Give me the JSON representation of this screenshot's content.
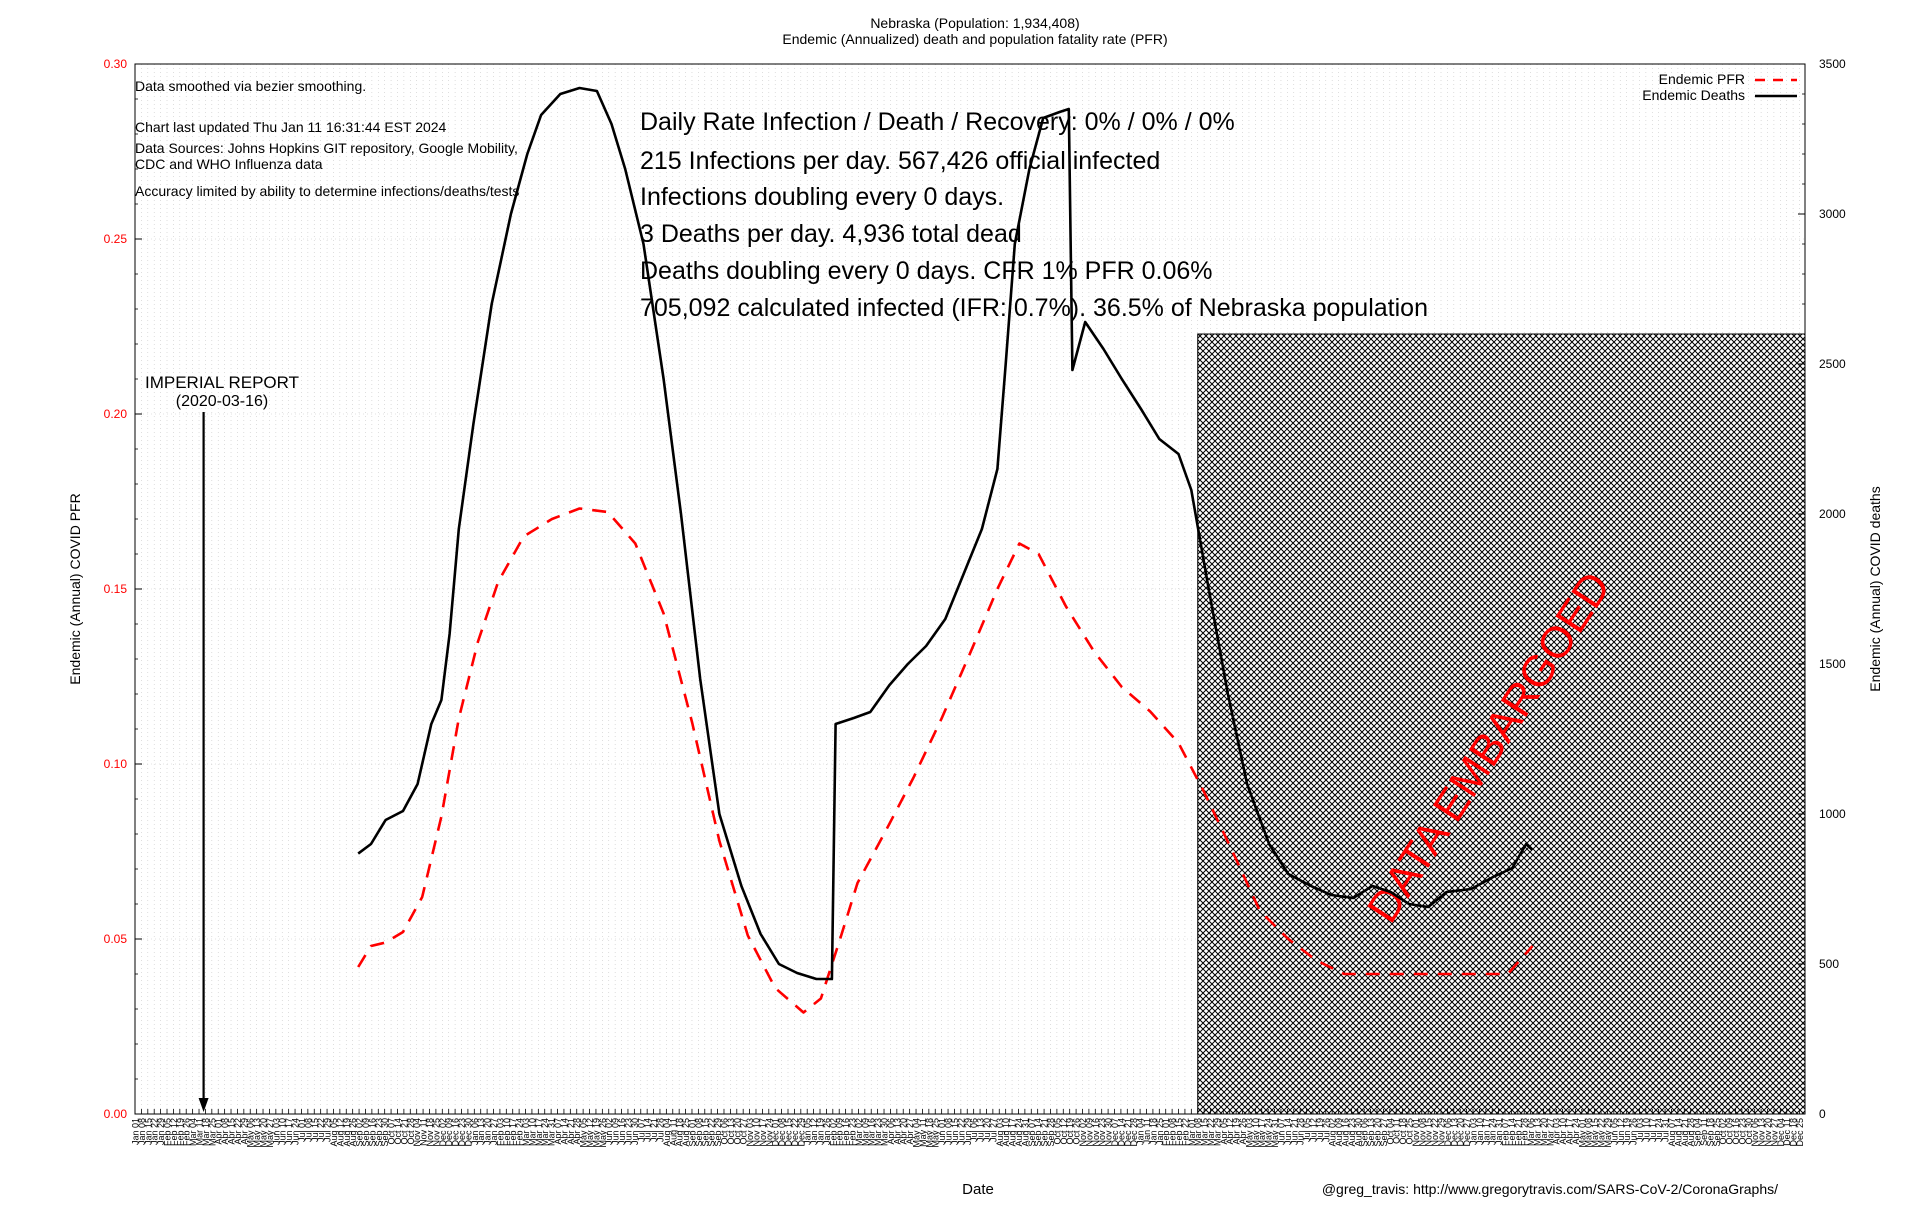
{
  "chart_data": {
    "type": "line",
    "title": "Nebraska (Population: 1,934,408)",
    "subtitle": "Endemic (Annualized) death and population fatality rate (PFR)",
    "xlabel": "Date",
    "ylabel": "Endemic (Annual) COVID PFR",
    "y2label": "Endemic (Annual) COVID deaths",
    "ylim": [
      0,
      0.3
    ],
    "y2lim": [
      0,
      3500
    ],
    "yticks": [
      "0.00",
      "0.05",
      "0.10",
      "0.15",
      "0.20",
      "0.25",
      "0.30"
    ],
    "y2ticks": [
      "0",
      "500",
      "1000",
      "1500",
      "2000",
      "2500",
      "3000",
      "3500"
    ],
    "grid": true,
    "legend_position": "top-right",
    "x_start": "2020-01-01",
    "x_end": "2024-12-31",
    "embargo_start": "2023-03-08",
    "series": [
      {
        "name": "Endemic PFR",
        "axis": "left",
        "color": "#ff0000",
        "style": "dashed",
        "points": [
          [
            "2020-09-01",
            0.042
          ],
          [
            "2020-09-15",
            0.048
          ],
          [
            "2020-10-01",
            0.049
          ],
          [
            "2020-10-20",
            0.052
          ],
          [
            "2020-11-10",
            0.062
          ],
          [
            "2020-12-01",
            0.085
          ],
          [
            "2020-12-20",
            0.113
          ],
          [
            "2021-01-10",
            0.135
          ],
          [
            "2021-02-01",
            0.152
          ],
          [
            "2021-03-01",
            0.165
          ],
          [
            "2021-04-01",
            0.17
          ],
          [
            "2021-05-01",
            0.173
          ],
          [
            "2021-06-01",
            0.172
          ],
          [
            "2021-07-01",
            0.163
          ],
          [
            "2021-08-01",
            0.143
          ],
          [
            "2021-09-01",
            0.112
          ],
          [
            "2021-10-01",
            0.078
          ],
          [
            "2021-11-01",
            0.051
          ],
          [
            "2021-12-01",
            0.036
          ],
          [
            "2022-01-01",
            0.029
          ],
          [
            "2022-01-20",
            0.033
          ],
          [
            "2022-02-10",
            0.05
          ],
          [
            "2022-03-01",
            0.066
          ],
          [
            "2022-04-01",
            0.081
          ],
          [
            "2022-05-01",
            0.096
          ],
          [
            "2022-06-01",
            0.113
          ],
          [
            "2022-07-01",
            0.131
          ],
          [
            "2022-08-01",
            0.15
          ],
          [
            "2022-08-25",
            0.163
          ],
          [
            "2022-09-15",
            0.16
          ],
          [
            "2022-10-15",
            0.145
          ],
          [
            "2022-11-15",
            0.132
          ],
          [
            "2022-12-15",
            0.122
          ],
          [
            "2023-01-15",
            0.115
          ],
          [
            "2023-02-15",
            0.106
          ],
          [
            "2023-03-15",
            0.092
          ],
          [
            "2023-04-15",
            0.075
          ],
          [
            "2023-05-15",
            0.058
          ],
          [
            "2023-06-15",
            0.05
          ],
          [
            "2023-07-15",
            0.044
          ],
          [
            "2023-08-15",
            0.04
          ],
          [
            "2023-10-01",
            0.04
          ],
          [
            "2023-12-01",
            0.04
          ],
          [
            "2024-02-10",
            0.04
          ],
          [
            "2024-03-08",
            0.048
          ]
        ]
      },
      {
        "name": "Endemic Deaths",
        "axis": "right",
        "color": "#000000",
        "style": "solid",
        "points": [
          [
            "2020-09-01",
            868
          ],
          [
            "2020-09-15",
            900
          ],
          [
            "2020-10-01",
            980
          ],
          [
            "2020-10-20",
            1010
          ],
          [
            "2020-11-05",
            1100
          ],
          [
            "2020-11-20",
            1300
          ],
          [
            "2020-12-01",
            1380
          ],
          [
            "2020-12-10",
            1600
          ],
          [
            "2020-12-20",
            1950
          ],
          [
            "2021-01-05",
            2300
          ],
          [
            "2021-01-25",
            2700
          ],
          [
            "2021-02-15",
            3000
          ],
          [
            "2021-03-05",
            3200
          ],
          [
            "2021-03-20",
            3330
          ],
          [
            "2021-04-10",
            3400
          ],
          [
            "2021-05-01",
            3420
          ],
          [
            "2021-05-20",
            3410
          ],
          [
            "2021-06-05",
            3300
          ],
          [
            "2021-06-20",
            3150
          ],
          [
            "2021-07-10",
            2900
          ],
          [
            "2021-08-01",
            2450
          ],
          [
            "2021-08-20",
            2000
          ],
          [
            "2021-09-10",
            1450
          ],
          [
            "2021-10-01",
            1000
          ],
          [
            "2021-10-25",
            760
          ],
          [
            "2021-11-15",
            600
          ],
          [
            "2021-12-05",
            500
          ],
          [
            "2021-12-25",
            470
          ],
          [
            "2022-01-15",
            450
          ],
          [
            "2022-02-01",
            450
          ],
          [
            "2022-02-05",
            1300
          ],
          [
            "2022-02-25",
            1320
          ],
          [
            "2022-03-15",
            1340
          ],
          [
            "2022-04-05",
            1430
          ],
          [
            "2022-04-25",
            1500
          ],
          [
            "2022-05-15",
            1560
          ],
          [
            "2022-06-05",
            1650
          ],
          [
            "2022-06-25",
            1800
          ],
          [
            "2022-07-15",
            1950
          ],
          [
            "2022-08-01",
            2150
          ],
          [
            "2022-08-10",
            2500
          ],
          [
            "2022-08-20",
            2900
          ],
          [
            "2022-09-05",
            3150
          ],
          [
            "2022-09-20",
            3320
          ],
          [
            "2022-10-08",
            3340
          ],
          [
            "2022-10-18",
            3350
          ],
          [
            "2022-10-22",
            2480
          ],
          [
            "2022-11-05",
            2640
          ],
          [
            "2022-11-25",
            2550
          ],
          [
            "2022-12-15",
            2450
          ],
          [
            "2023-01-05",
            2350
          ],
          [
            "2023-01-25",
            2250
          ],
          [
            "2023-02-15",
            2200
          ],
          [
            "2023-03-01",
            2080
          ],
          [
            "2023-03-20",
            1750
          ],
          [
            "2023-04-10",
            1400
          ],
          [
            "2023-05-01",
            1100
          ],
          [
            "2023-05-25",
            900
          ],
          [
            "2023-06-15",
            800
          ],
          [
            "2023-07-10",
            760
          ],
          [
            "2023-08-01",
            730
          ],
          [
            "2023-08-25",
            720
          ],
          [
            "2023-09-15",
            760
          ],
          [
            "2023-10-05",
            740
          ],
          [
            "2023-10-25",
            700
          ],
          [
            "2023-11-15",
            690
          ],
          [
            "2023-12-05",
            740
          ],
          [
            "2024-01-01",
            750
          ],
          [
            "2024-01-25",
            790
          ],
          [
            "2024-02-15",
            820
          ],
          [
            "2024-03-01",
            900
          ],
          [
            "2024-03-08",
            880
          ]
        ]
      }
    ],
    "annotations": [
      {
        "text": "Data smoothed via bezier smoothing."
      },
      {
        "text": "Chart last updated Thu Jan 11 16:31:44 EST 2024"
      },
      {
        "text": "Data Sources: Johns Hopkins GIT repository, Google Mobility,"
      },
      {
        "text": "CDC and WHO Influenza data"
      },
      {
        "text": "Accuracy limited by ability to determine infections/deaths/tests"
      }
    ],
    "stats": [
      "Daily Rate Infection / Death / Recovery: 0% / 0% / 0%",
      "215 Infections per day.  567,426 official infected",
      "Infections doubling every 0 days.",
      "3 Deaths per day.  4,936 total dead",
      "Deaths doubling every 0 days.  CFR 1%  PFR 0.06%",
      "705,092 calculated infected (IFR: 0.7%).  36.5% of Nebraska population"
    ],
    "imperial_label": "IMPERIAL REPORT",
    "imperial_date": "(2020-03-16)",
    "imperial_at": "2020-03-16",
    "embargo_text": "DATA EMBARGOED",
    "credit": "@greg_travis: http://www.gregorytravis.com/SARS-CoV-2/CoronaGraphs/",
    "month_abbr": [
      "Jan",
      "Feb",
      "Mar",
      "Apr",
      "May",
      "Jun",
      "Jul",
      "Aug",
      "Sep",
      "Oct",
      "Nov",
      "Dec"
    ]
  }
}
